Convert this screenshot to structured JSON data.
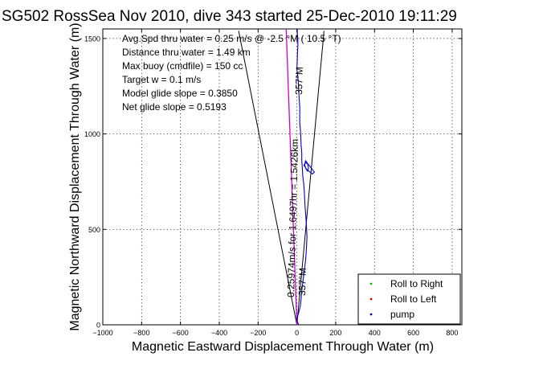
{
  "chart_data": {
    "type": "line",
    "title": "SG502 RossSea Nov 2010, dive 343 started 25-Dec-2010 19:11:29",
    "xlabel": "Magnetic Eastward Displacement Through Water (m)",
    "ylabel": "Magnetic Northward Displacement Through Water (m)",
    "xlim": [
      -1000,
      850
    ],
    "ylim": [
      0,
      1550
    ],
    "xticks": [
      -1000,
      -800,
      -600,
      -400,
      -200,
      0,
      200,
      400,
      600,
      800
    ],
    "xtick_labels": [
      "−1000",
      "−800",
      "−600",
      "−400",
      "−200",
      "0",
      "200",
      "400",
      "600",
      "800"
    ],
    "yticks": [
      0,
      500,
      1000,
      1500
    ],
    "ytick_labels": [
      "0",
      "500",
      "1000",
      "1500"
    ],
    "grid": true,
    "legend_position": "bottom-right",
    "colors": {
      "track": "#0000cc",
      "heading": "#cc00cc",
      "frame": "#000000",
      "roll_right": "#00bb00",
      "roll_left": "#dd0000",
      "pump": "#000088"
    },
    "stats": [
      "Avg.Spd thru water = 0.25 m/s @  -2.5  °M ( 10.5 °T)",
      "Distance thru water = 1.49 km",
      "Max buoy (cmdfile) = 150 cc",
      "Target w = 0.1 m/s",
      "Model glide slope = 0.3850",
      "Net glide slope = 0.5193"
    ],
    "annotations": {
      "speed_line_label": "0.25974m/s for 1.6497hr = 1.5426km",
      "start_heading_label": "357°M",
      "end_heading_label": "357°M"
    },
    "legend": [
      {
        "name": "Roll to Right",
        "color": "#00bb00"
      },
      {
        "name": "Roll to Left",
        "color": "#dd0000"
      },
      {
        "name": "pump",
        "color": "#000088"
      }
    ],
    "series": [
      {
        "name": "",
        "kind": "cone",
        "color": "#000000",
        "x": [
          -300,
          0,
          140
        ],
        "y": [
          1540,
          0,
          1540
        ]
      },
      {
        "name": "",
        "kind": "heading",
        "color": "#cc00cc",
        "x": [
          0,
          -55
        ],
        "y": [
          0,
          1550
        ]
      },
      {
        "name": "",
        "kind": "track",
        "color": "#0000cc",
        "x": [
          10,
          5,
          0,
          8,
          18,
          22,
          25,
          30,
          35,
          40,
          45,
          48,
          50,
          52,
          50,
          48,
          45,
          42,
          40,
          38,
          35,
          30,
          28,
          25,
          25,
          22,
          20,
          18,
          15,
          15,
          15,
          12,
          10,
          8,
          5,
          0,
          2,
          3,
          5,
          5,
          5,
          3,
          2,
          2
        ],
        "y": [
          0,
          10,
          30,
          60,
          100,
          140,
          180,
          220,
          260,
          300,
          340,
          380,
          420,
          460,
          500,
          540,
          580,
          620,
          660,
          700,
          740,
          780,
          820,
          860,
          900,
          940,
          980,
          1020,
          1060,
          1100,
          1140,
          1180,
          1220,
          1260,
          1300,
          1340,
          1380,
          1420,
          1460,
          1480,
          1500,
          1520,
          1540,
          1550
        ]
      },
      {
        "name": "",
        "kind": "track",
        "color": "#0000cc",
        "x": [
          35,
          40,
          50,
          80,
          90,
          75,
          60,
          45,
          40,
          45,
          55,
          60,
          55,
          45,
          40
        ],
        "y": [
          840,
          830,
          815,
          790,
          800,
          820,
          840,
          850,
          840,
          820,
          805,
          820,
          845,
          860,
          840
        ]
      }
    ]
  }
}
